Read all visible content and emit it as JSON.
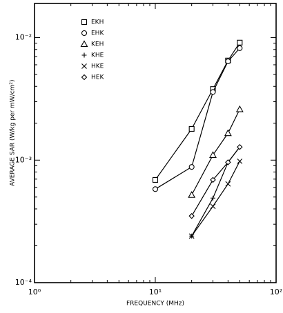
{
  "chart_data": {
    "type": "line",
    "xlabel": "FREQUENCY (MHz)",
    "ylabel": "AVERAGE SAR (W/kg per mW/cm²)",
    "xscale": "log",
    "yscale": "log",
    "xlim": [
      1,
      100
    ],
    "ylim": [
      0.0001,
      0.019
    ],
    "xticks": [
      {
        "value": 1,
        "label": "10⁰"
      },
      {
        "value": 10,
        "label": "10¹"
      },
      {
        "value": 100,
        "label": "10²"
      }
    ],
    "yticks": [
      {
        "value": 0.0001,
        "label": "10⁻⁴"
      },
      {
        "value": 0.001,
        "label": "10⁻³"
      },
      {
        "value": 0.01,
        "label": "10⁻²"
      }
    ],
    "grid": false,
    "legend": "upper left",
    "series": [
      {
        "name": "EKH",
        "color": "#000000",
        "marker": "square",
        "x": [
          10,
          20,
          30,
          40,
          50
        ],
        "values": [
          0.00069,
          0.0018,
          0.0038,
          0.0065,
          0.0091
        ]
      },
      {
        "name": "EHK",
        "color": "#000000",
        "marker": "circle",
        "x": [
          10,
          20,
          30,
          40,
          50
        ],
        "values": [
          0.00058,
          0.00088,
          0.0036,
          0.0064,
          0.0082
        ]
      },
      {
        "name": "KEH",
        "color": "#000000",
        "marker": "triangle",
        "x": [
          20,
          30,
          40,
          50
        ],
        "values": [
          0.00052,
          0.0011,
          0.00166,
          0.0026
        ]
      },
      {
        "name": "KHE",
        "color": "#000000",
        "marker": "plus",
        "x": [
          20,
          30,
          40,
          50
        ],
        "values": [
          0.00024,
          0.00049,
          0.00096,
          0.00128
        ]
      },
      {
        "name": "HKE",
        "color": "#000000",
        "marker": "cross",
        "x": [
          20,
          30,
          40,
          50
        ],
        "values": [
          0.00024,
          0.00042,
          0.00064,
          0.00098
        ]
      },
      {
        "name": "HEK",
        "color": "#000000",
        "marker": "diamond",
        "x": [
          20,
          30,
          40,
          50
        ],
        "values": [
          0.00035,
          0.00069,
          0.00096,
          0.00128
        ]
      }
    ]
  }
}
